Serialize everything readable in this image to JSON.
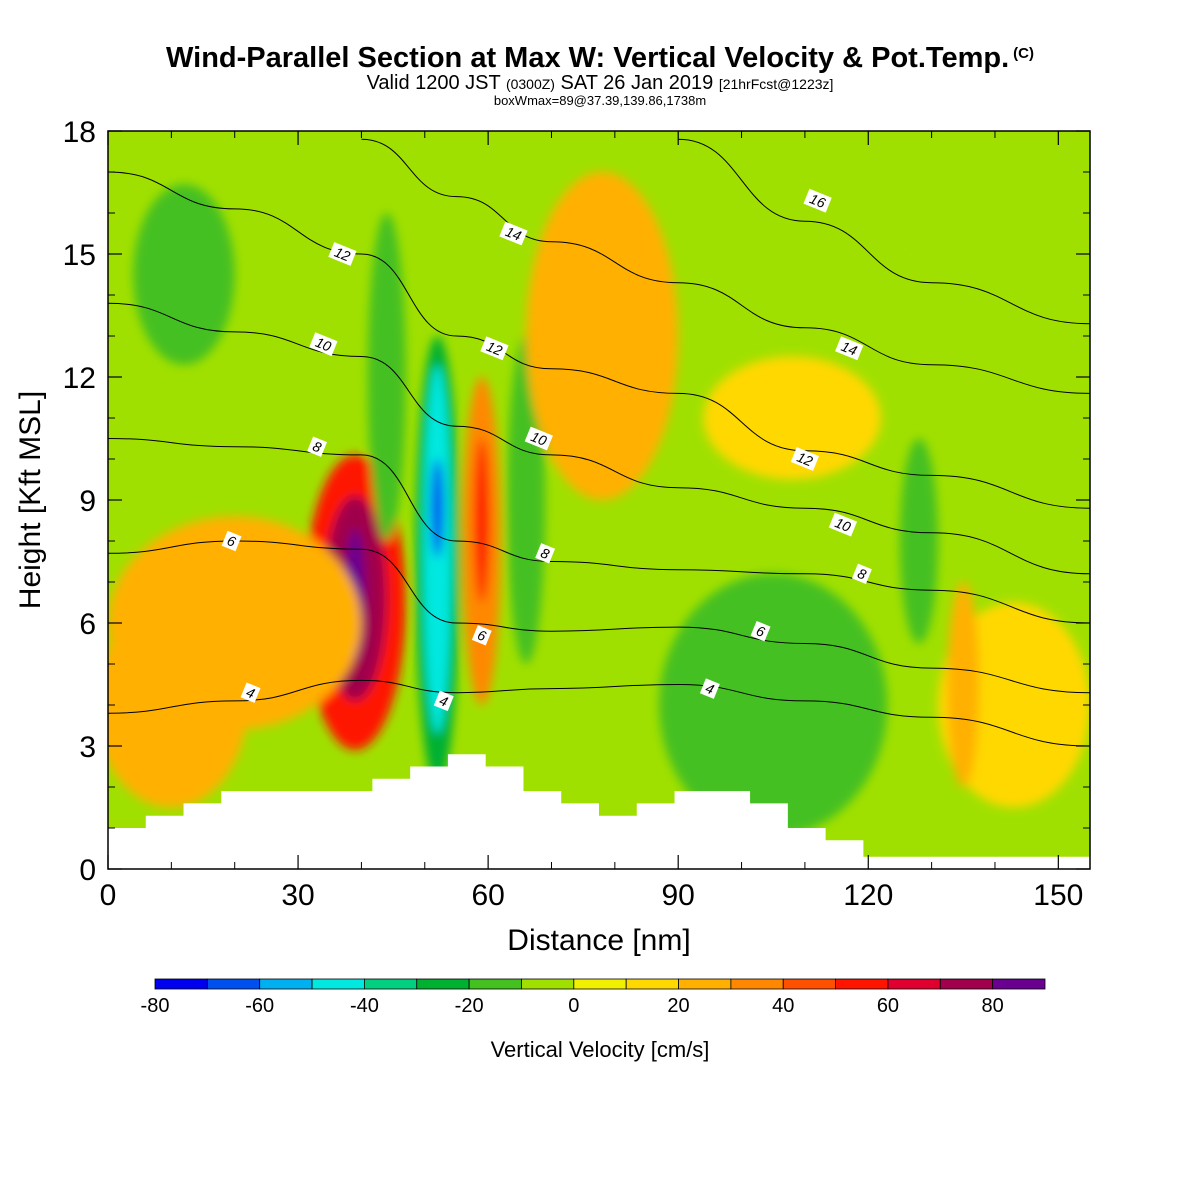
{
  "header": {
    "title_main": "Wind-Parallel Section at Max W: Vertical Velocity & Pot.Temp.",
    "title_copyright": "(C)",
    "valid_prefix": "Valid 1200 JST",
    "valid_z": "(0300Z)",
    "valid_date": "SAT 26 Jan 2019",
    "forecast": "[21hrFcst@1223z]",
    "box_info": "boxWmax=89@37.39,139.86,1738m"
  },
  "chart_data": {
    "type": "heatmap",
    "xlabel": "Distance [nm]",
    "ylabel": "Height [Kft MSL]",
    "xlim": [
      0,
      155
    ],
    "ylim": [
      0,
      18
    ],
    "x_ticks": [
      0,
      30,
      60,
      90,
      120,
      150
    ],
    "y_ticks": [
      0,
      3,
      6,
      9,
      12,
      15,
      18
    ],
    "colorbar": {
      "title": "Vertical Velocity [cm/s]",
      "range": [
        -80,
        90
      ],
      "tick_values": [
        -80,
        -60,
        -40,
        -20,
        0,
        20,
        40,
        60,
        80
      ],
      "colors": [
        "#0000f0",
        "#0050f0",
        "#00b0f0",
        "#00e8e0",
        "#00d080",
        "#00b030",
        "#44c020",
        "#a0e000",
        "#f0f000",
        "#ffd800",
        "#ffb000",
        "#ff8800",
        "#ff5000",
        "#ff1400",
        "#e00030",
        "#a0004c",
        "#6a0090"
      ]
    },
    "velocity_cells": [
      {
        "x": 39,
        "y": 6.5,
        "rx": 8,
        "ry": 3.6,
        "w": 50
      },
      {
        "x": 39,
        "y": 6.6,
        "rx": 5,
        "ry": 2.5,
        "w": 70
      },
      {
        "x": 39,
        "y": 6.7,
        "rx": 1.6,
        "ry": 1.6,
        "w": 89
      },
      {
        "x": 20,
        "y": 6,
        "rx": 20,
        "ry": 2.6,
        "w": 22
      },
      {
        "x": 10,
        "y": 4,
        "rx": 12,
        "ry": 2.5,
        "w": 22
      },
      {
        "x": 52,
        "y": 7.5,
        "rx": 3.5,
        "ry": 5.5,
        "w": -30
      },
      {
        "x": 52,
        "y": 7.8,
        "rx": 2.3,
        "ry": 4.5,
        "w": -45
      },
      {
        "x": 52,
        "y": 8.8,
        "rx": 1,
        "ry": 1.2,
        "w": -70
      },
      {
        "x": 59,
        "y": 8,
        "rx": 3,
        "ry": 4,
        "w": 35
      },
      {
        "x": 59,
        "y": 8.5,
        "rx": 1.2,
        "ry": 2,
        "w": 55
      },
      {
        "x": 66,
        "y": 9,
        "rx": 3,
        "ry": 4,
        "w": -15
      },
      {
        "x": 44,
        "y": 12,
        "rx": 3,
        "ry": 4,
        "w": -15
      },
      {
        "x": 78,
        "y": 13,
        "rx": 12,
        "ry": 4,
        "w": 20
      },
      {
        "x": 80,
        "y": 13.3,
        "rx": 5,
        "ry": 1.8,
        "w": 28
      },
      {
        "x": 108,
        "y": 11,
        "rx": 14,
        "ry": 1.5,
        "w": 15
      },
      {
        "x": 12,
        "y": 14.5,
        "rx": 8,
        "ry": 2.2,
        "w": -15
      },
      {
        "x": 105,
        "y": 4,
        "rx": 18,
        "ry": 3.2,
        "w": -15
      },
      {
        "x": 128,
        "y": 8,
        "rx": 3,
        "ry": 2.5,
        "w": -15
      },
      {
        "x": 140,
        "y": 16.5,
        "rx": 20,
        "ry": 2.5,
        "w": -5
      },
      {
        "x": 143,
        "y": 4,
        "rx": 12,
        "ry": 2.5,
        "w": 12
      },
      {
        "x": 135,
        "y": 4.5,
        "rx": 2.5,
        "ry": 2.5,
        "w": 25
      }
    ],
    "terrain_kft": [
      1.0,
      1.3,
      1.6,
      1.9,
      1.9,
      1.9,
      1.9,
      2.2,
      2.5,
      2.8,
      2.5,
      1.9,
      1.6,
      1.3,
      1.6,
      1.9,
      1.9,
      1.6,
      1.0,
      0.7,
      0.3,
      0.3,
      0.3,
      0.3,
      0.3,
      0.3
    ],
    "isentropes": [
      {
        "label": "4",
        "x": [
          0,
          20,
          40,
          55,
          70,
          90,
          110,
          130,
          155
        ],
        "y": [
          3.8,
          4.1,
          4.6,
          4.3,
          4.4,
          4.5,
          4.1,
          3.7,
          3.0
        ]
      },
      {
        "label": "6",
        "x": [
          0,
          20,
          40,
          55,
          70,
          90,
          110,
          130,
          155
        ],
        "y": [
          7.7,
          8.0,
          7.8,
          6.0,
          5.8,
          5.9,
          5.5,
          4.9,
          4.3
        ]
      },
      {
        "label": "8",
        "x": [
          0,
          20,
          40,
          55,
          70,
          90,
          110,
          130,
          155
        ],
        "y": [
          10.5,
          10.3,
          10.1,
          8.0,
          7.5,
          7.3,
          7.2,
          6.8,
          6.0
        ]
      },
      {
        "label": "10",
        "x": [
          0,
          20,
          40,
          55,
          70,
          90,
          110,
          130,
          155
        ],
        "y": [
          13.8,
          13.1,
          12.5,
          10.8,
          10.1,
          9.3,
          8.8,
          8.2,
          7.2
        ]
      },
      {
        "label": "12",
        "x": [
          0,
          20,
          40,
          55,
          70,
          90,
          110,
          130,
          155
        ],
        "y": [
          17.0,
          16.1,
          15.0,
          13.0,
          12.2,
          11.6,
          10.2,
          9.6,
          8.8
        ]
      },
      {
        "label": "14",
        "x": [
          40,
          55,
          70,
          90,
          110,
          130,
          155
        ],
        "y": [
          17.8,
          16.4,
          15.3,
          14.3,
          13.2,
          12.3,
          11.6
        ]
      },
      {
        "label": "16",
        "x": [
          90,
          110,
          130,
          155
        ],
        "y": [
          17.8,
          15.8,
          14.3,
          13.3
        ]
      }
    ],
    "isentrope_labels": [
      {
        "text": "4",
        "x": 22.5,
        "y": 4.3
      },
      {
        "text": "4",
        "x": 53,
        "y": 4.1
      },
      {
        "text": "4",
        "x": 95,
        "y": 4.4
      },
      {
        "text": "6",
        "x": 19.5,
        "y": 8.0
      },
      {
        "text": "6",
        "x": 59,
        "y": 5.7
      },
      {
        "text": "6",
        "x": 103,
        "y": 5.8
      },
      {
        "text": "8",
        "x": 33,
        "y": 10.3
      },
      {
        "text": "8",
        "x": 69,
        "y": 7.7
      },
      {
        "text": "8",
        "x": 119,
        "y": 7.2
      },
      {
        "text": "10",
        "x": 34,
        "y": 12.8
      },
      {
        "text": "10",
        "x": 68,
        "y": 10.5
      },
      {
        "text": "10",
        "x": 116,
        "y": 8.4
      },
      {
        "text": "12",
        "x": 37,
        "y": 15.0
      },
      {
        "text": "12",
        "x": 61,
        "y": 12.7
      },
      {
        "text": "12",
        "x": 110,
        "y": 10.0
      },
      {
        "text": "14",
        "x": 64,
        "y": 15.5
      },
      {
        "text": "14",
        "x": 117,
        "y": 12.7
      },
      {
        "text": "16",
        "x": 112,
        "y": 16.3
      }
    ]
  }
}
